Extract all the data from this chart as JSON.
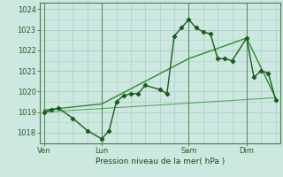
{
  "background_color": "#cce8e0",
  "grid_color": "#aacfc8",
  "line_color_dark": "#1a5c1a",
  "line_color_mid": "#2d8a2d",
  "title": "Pression niveau de la mer( hPa )",
  "ylabel_ticks": [
    1018,
    1019,
    1020,
    1021,
    1022,
    1023,
    1024
  ],
  "x_tick_labels": [
    "Ven",
    "Lun",
    "Sam",
    "Dim"
  ],
  "x_tick_positions": [
    0,
    4,
    10,
    14
  ],
  "series1_x": [
    0,
    0.5,
    1,
    2,
    3,
    4,
    4.5,
    5,
    5.5,
    6,
    6.5,
    7,
    8,
    8.5,
    9,
    9.5,
    10,
    10.5,
    11,
    11.5,
    12,
    12.5,
    13,
    14,
    14.5,
    15,
    15.5,
    16
  ],
  "series1_y": [
    1019.0,
    1019.1,
    1019.2,
    1018.7,
    1018.1,
    1017.7,
    1018.1,
    1019.5,
    1019.8,
    1019.9,
    1019.9,
    1020.3,
    1020.1,
    1019.9,
    1022.7,
    1023.1,
    1023.5,
    1023.1,
    1022.9,
    1022.8,
    1021.6,
    1021.6,
    1021.5,
    1022.6,
    1020.7,
    1021.0,
    1020.9,
    1019.6
  ],
  "series2_x": [
    0,
    4,
    10,
    14,
    16
  ],
  "series2_y": [
    1019.1,
    1019.4,
    1021.6,
    1022.6,
    1019.7
  ],
  "series3_x": [
    0,
    16
  ],
  "series3_y": [
    1019.0,
    1019.7
  ],
  "ylim": [
    1017.5,
    1024.3
  ],
  "xlim": [
    -0.3,
    16.3
  ],
  "figwidth": 3.2,
  "figheight": 2.0,
  "dpi": 100
}
